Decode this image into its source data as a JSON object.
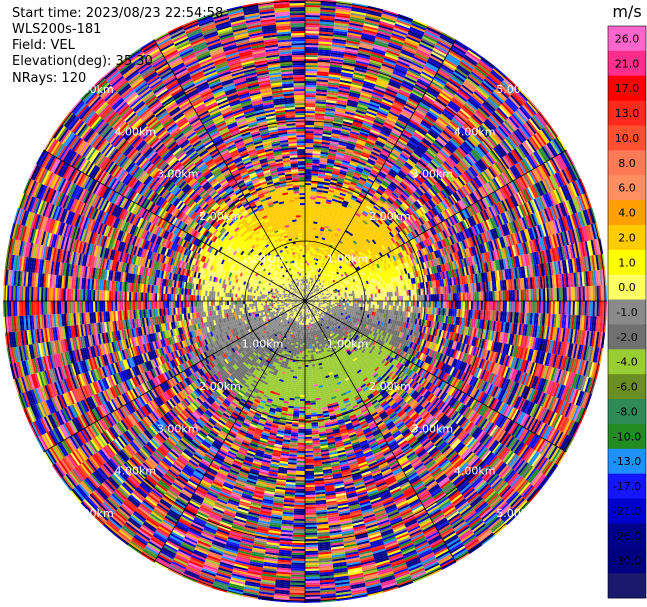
{
  "header": {
    "start_time": "Start time: 2023/08/23 22:54:58",
    "station": "WLS200s-181",
    "field": "Field: VEL",
    "elevation": "Elevation(deg): 35.30",
    "nrays": "NRays: 120"
  },
  "chart_data": {
    "type": "heatmap",
    "projection": "polar-ppi",
    "nrays": 120,
    "range_rings_km": [
      1.0,
      2.0,
      3.0,
      4.0,
      5.0
    ],
    "ring_labels": {
      "r1": "1.00km",
      "r2": "2.00km",
      "r3": "3.00km",
      "r4": "4.00km",
      "r5": "5.00km"
    },
    "colorbar": {
      "unit": "m/s",
      "ticks": [
        {
          "value": 26.0,
          "label": "26.0"
        },
        {
          "value": 21.0,
          "label": "21.0"
        },
        {
          "value": 17.0,
          "label": "17.0"
        },
        {
          "value": 13.0,
          "label": "13.0"
        },
        {
          "value": 10.0,
          "label": "10.0"
        },
        {
          "value": 8.0,
          "label": "8.0"
        },
        {
          "value": 6.0,
          "label": "6.0"
        },
        {
          "value": 4.0,
          "label": "4.0"
        },
        {
          "value": 2.0,
          "label": "2.0"
        },
        {
          "value": 1.0,
          "label": "1.0"
        },
        {
          "value": 0.0,
          "label": "0.0"
        },
        {
          "value": -1.0,
          "label": "-1.0"
        },
        {
          "value": -2.0,
          "label": "-2.0"
        },
        {
          "value": -4.0,
          "label": "-4.0"
        },
        {
          "value": -6.0,
          "label": "-6.0"
        },
        {
          "value": -8.0,
          "label": "-8.0"
        },
        {
          "value": -10.0,
          "label": "-10.0"
        },
        {
          "value": -13.0,
          "label": "-13.0"
        },
        {
          "value": -17.0,
          "label": "-17.0"
        },
        {
          "value": -21.0,
          "label": "-21.0"
        },
        {
          "value": -26.0,
          "label": "-26.0"
        },
        {
          "value": -30.0,
          "label": "-30.0"
        }
      ],
      "colors": [
        "#ff66cc",
        "#ff2d8c",
        "#ff0000",
        "#ff2a1a",
        "#ff5030",
        "#ff7a55",
        "#ff8f60",
        "#ffa000",
        "#ffcc00",
        "#ffff00",
        "#ffff66",
        "#8a8a8a",
        "#707070",
        "#9acd32",
        "#6b8e23",
        "#2e8b57",
        "#228b22",
        "#1e90ff",
        "#1515ff",
        "#0000cd",
        "#00008b",
        "#000080",
        "#191970"
      ]
    }
  }
}
